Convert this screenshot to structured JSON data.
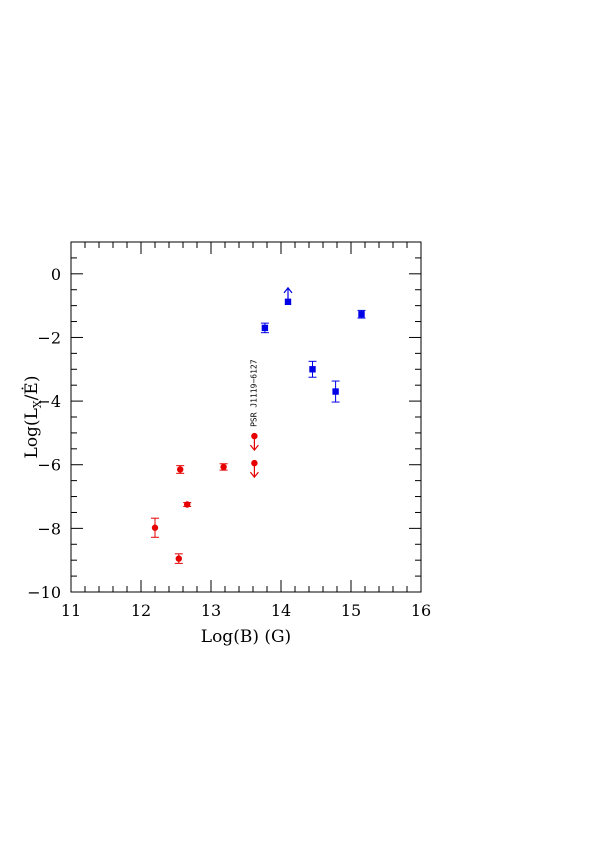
{
  "chart_data": {
    "type": "scatter",
    "title": "",
    "xlabel": "Log(B) (G)",
    "ylabel": "Log(L_X/Ė)",
    "xlim": [
      11,
      16
    ],
    "ylim": [
      -10,
      1
    ],
    "xticks": [
      11,
      12,
      13,
      14,
      15,
      16
    ],
    "xtick_labels": [
      "11",
      "12",
      "13",
      "14",
      "15",
      "16"
    ],
    "yticks": [
      0,
      -2,
      -4,
      -6,
      -8,
      -10
    ],
    "ytick_labels": [
      "0",
      "−2",
      "−4",
      "−6",
      "−8",
      "−10"
    ],
    "grid": false,
    "legend": "none",
    "annotation": {
      "text": "PSR J1119−6127",
      "x": 13.65,
      "y": -5.0
    },
    "series": [
      {
        "color": "#e60000",
        "marker": "circle",
        "points": [
          {
            "x": 12.2,
            "y": -7.98,
            "err": 0.3
          },
          {
            "x": 12.54,
            "y": -8.95,
            "err": 0.15
          },
          {
            "x": 12.56,
            "y": -6.15,
            "err": 0.12
          },
          {
            "x": 12.66,
            "y": -7.25,
            "err": 0.06
          },
          {
            "x": 13.18,
            "y": -6.07,
            "err": 0.1
          },
          {
            "x": 13.62,
            "y": -5.1,
            "limit": "upper"
          },
          {
            "x": 13.62,
            "y": -5.95,
            "limit": "upper"
          }
        ]
      },
      {
        "color": "#0000e6",
        "marker": "square",
        "points": [
          {
            "x": 13.77,
            "y": -1.7,
            "err": 0.15
          },
          {
            "x": 14.1,
            "y": -0.88,
            "limit": "lower"
          },
          {
            "x": 14.45,
            "y": -3.0,
            "err": 0.25
          },
          {
            "x": 14.78,
            "y": -3.7,
            "err": 0.33
          },
          {
            "x": 15.15,
            "y": -1.27,
            "err": 0.12
          }
        ]
      }
    ]
  }
}
